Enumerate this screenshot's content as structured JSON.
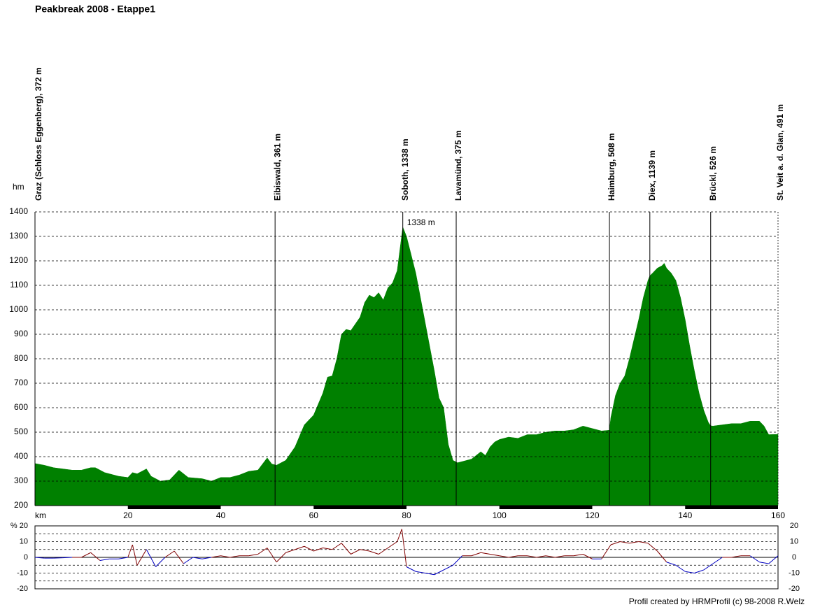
{
  "footer": "Profil created by HRMProfil (c) 98-2008 R.Welz",
  "chart_data": [
    {
      "type": "area",
      "title": "Peakbreak 2008 - Etappe1",
      "y_label": "hm",
      "x_label": "km",
      "color": "#008000",
      "xlim": [
        0,
        160
      ],
      "xticks": [
        20,
        40,
        60,
        80,
        100,
        120,
        140,
        160
      ],
      "ylim": [
        200,
        1400
      ],
      "yticks": [
        200,
        300,
        400,
        500,
        600,
        700,
        800,
        900,
        1000,
        1100,
        1200,
        1300,
        1400
      ],
      "grid": true,
      "x": [
        0,
        2,
        4,
        6,
        8,
        10,
        12,
        13,
        15,
        18,
        20,
        21,
        22,
        24,
        25,
        27,
        29,
        31,
        33,
        36,
        38,
        40,
        42,
        44,
        46,
        48,
        50,
        51,
        52,
        54,
        56,
        58,
        60,
        62,
        63,
        64,
        65,
        66,
        67,
        68,
        70,
        71,
        72,
        73,
        74,
        75,
        76,
        77,
        78,
        79.2,
        80,
        82,
        84,
        86,
        87,
        88,
        89,
        90,
        91,
        92,
        94,
        96,
        97,
        98,
        99,
        100,
        102,
        104,
        106,
        108,
        110,
        112,
        114,
        116,
        118,
        120,
        122,
        123.7,
        124,
        125,
        126,
        127,
        128,
        129,
        130,
        131,
        132,
        132.4,
        133,
        134,
        135,
        135.5,
        136,
        137,
        138,
        139,
        140,
        141,
        142,
        143,
        144,
        145,
        145.5,
        146,
        148,
        150,
        152,
        154,
        156,
        157,
        158,
        160
      ],
      "values": [
        372,
        365,
        355,
        350,
        345,
        345,
        355,
        355,
        335,
        320,
        315,
        335,
        330,
        350,
        320,
        300,
        305,
        345,
        315,
        310,
        300,
        315,
        315,
        325,
        340,
        345,
        395,
        370,
        365,
        385,
        440,
        530,
        570,
        660,
        725,
        730,
        800,
        900,
        920,
        915,
        970,
        1030,
        1060,
        1050,
        1070,
        1040,
        1090,
        1110,
        1160,
        1338,
        1300,
        1150,
        950,
        750,
        640,
        600,
        450,
        385,
        375,
        380,
        390,
        420,
        405,
        440,
        460,
        470,
        480,
        475,
        490,
        490,
        500,
        505,
        505,
        510,
        525,
        515,
        505,
        508,
        560,
        650,
        700,
        730,
        800,
        880,
        960,
        1050,
        1120,
        1139,
        1150,
        1170,
        1180,
        1190,
        1170,
        1150,
        1120,
        1050,
        960,
        850,
        750,
        660,
        590,
        540,
        526,
        525,
        530,
        535,
        535,
        545,
        545,
        525,
        490,
        491
      ],
      "annotations": [
        {
          "x": 0,
          "label": "Graz (Schloss Eggenberg), 372 m"
        },
        {
          "x": 51.7,
          "label": "Eibiswald, 361 m"
        },
        {
          "x": 79.2,
          "label": "Soboth, 1338 m"
        },
        {
          "x": 90.7,
          "label": "Lavamünd, 375 m"
        },
        {
          "x": 123.7,
          "label": "Haimburg, 508 m"
        },
        {
          "x": 132.4,
          "label": "Diex, 1139 m"
        },
        {
          "x": 145.5,
          "label": "Brückl, 526 m"
        },
        {
          "x": 160,
          "label": "St. Veit a. d. Glan, 491 m"
        }
      ],
      "peak_label": {
        "x": 79.2,
        "y": 1338,
        "label": "1338 m",
        "color": "#e00000"
      }
    },
    {
      "type": "line",
      "color": "#800000",
      "negative_color": "#0000c0",
      "xlim": [
        0,
        160
      ],
      "ylim": [
        -20,
        20
      ],
      "yticks": [
        {
          "value": -20,
          "label": "-20"
        },
        -10,
        0,
        10,
        {
          "value": 20,
          "label": "% 20"
        }
      ],
      "y2lim": [
        -20,
        20
      ],
      "y2ticks": [
        -20,
        -10,
        0,
        10,
        20
      ],
      "minor_gridlines": [
        -15,
        -5,
        5,
        15
      ],
      "x": [
        0,
        2,
        4,
        6,
        8,
        10,
        12,
        14,
        16,
        18,
        20,
        21,
        22,
        24,
        26,
        28,
        30,
        32,
        34,
        36,
        38,
        40,
        42,
        44,
        46,
        48,
        50,
        52,
        54,
        56,
        58,
        60,
        62,
        64,
        66,
        68,
        70,
        72,
        74,
        76,
        78,
        79,
        80,
        82,
        84,
        86,
        88,
        90,
        92,
        94,
        96,
        98,
        100,
        102,
        104,
        106,
        108,
        110,
        112,
        114,
        116,
        118,
        120,
        122,
        124,
        126,
        128,
        130,
        132,
        134,
        136,
        138,
        140,
        142,
        144,
        146,
        148,
        150,
        152,
        154,
        156,
        158,
        160
      ],
      "values": [
        0,
        -0.5,
        -0.5,
        -0.3,
        0,
        0,
        3,
        -2,
        -1,
        -1,
        0,
        8,
        -5,
        5,
        -6,
        0,
        4,
        -4,
        0,
        -1,
        0,
        1,
        0,
        1,
        1,
        2,
        6,
        -3,
        3,
        5,
        7,
        4,
        6,
        5,
        9,
        2,
        5,
        4,
        2,
        6,
        10,
        18,
        -6,
        -9,
        -10,
        -11,
        -8,
        -5,
        1,
        1,
        3,
        2,
        1,
        0,
        1,
        1,
        0,
        1,
        0,
        1,
        1,
        2,
        -1,
        -1,
        8,
        10,
        9,
        10,
        9,
        4,
        -3,
        -5,
        -9,
        -10,
        -8,
        -4,
        0,
        0,
        1,
        1,
        -3,
        -4,
        1
      ]
    }
  ]
}
